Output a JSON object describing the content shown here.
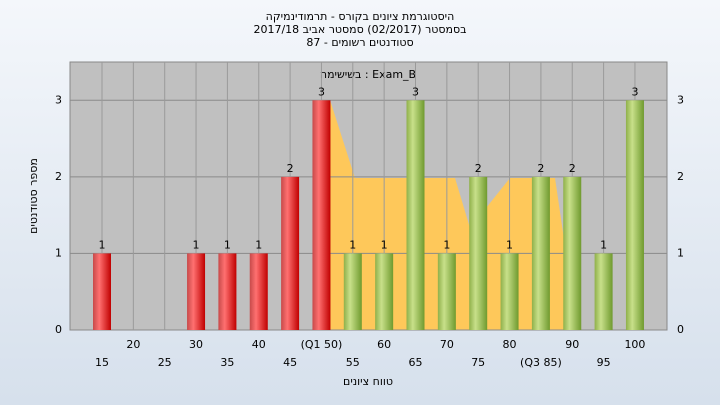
{
  "chart_data": {
    "type": "bar",
    "title": "היסטוגרמת ציונים בקורס - תרמודינמיקה",
    "subtitle": "בסמסטר  (02/2017)  סמסטר אביב 2017/18",
    "subtitle2": "סטודנטים רשומים - 87",
    "annotation": "בשישימה : Exam_B",
    "x_label": "טווח ציונים",
    "y_label": "מספר סטודנטים",
    "categories": [
      "15",
      "20",
      "25",
      "30",
      "35",
      "40",
      "45",
      "(Q1 50)",
      "55",
      "60",
      "65",
      "70",
      "75",
      "80",
      "(Q3 85)",
      "90",
      "95",
      "100"
    ],
    "values": [
      1,
      0,
      0,
      1,
      1,
      1,
      2,
      3,
      1,
      1,
      3,
      1,
      2,
      1,
      2,
      2,
      1,
      3
    ],
    "colors": {
      "below": "#e8272b",
      "above": "#9dc249"
    },
    "ylim": [
      0,
      3.5
    ],
    "yticks": [
      0,
      1,
      2,
      3
    ],
    "grid": true
  }
}
